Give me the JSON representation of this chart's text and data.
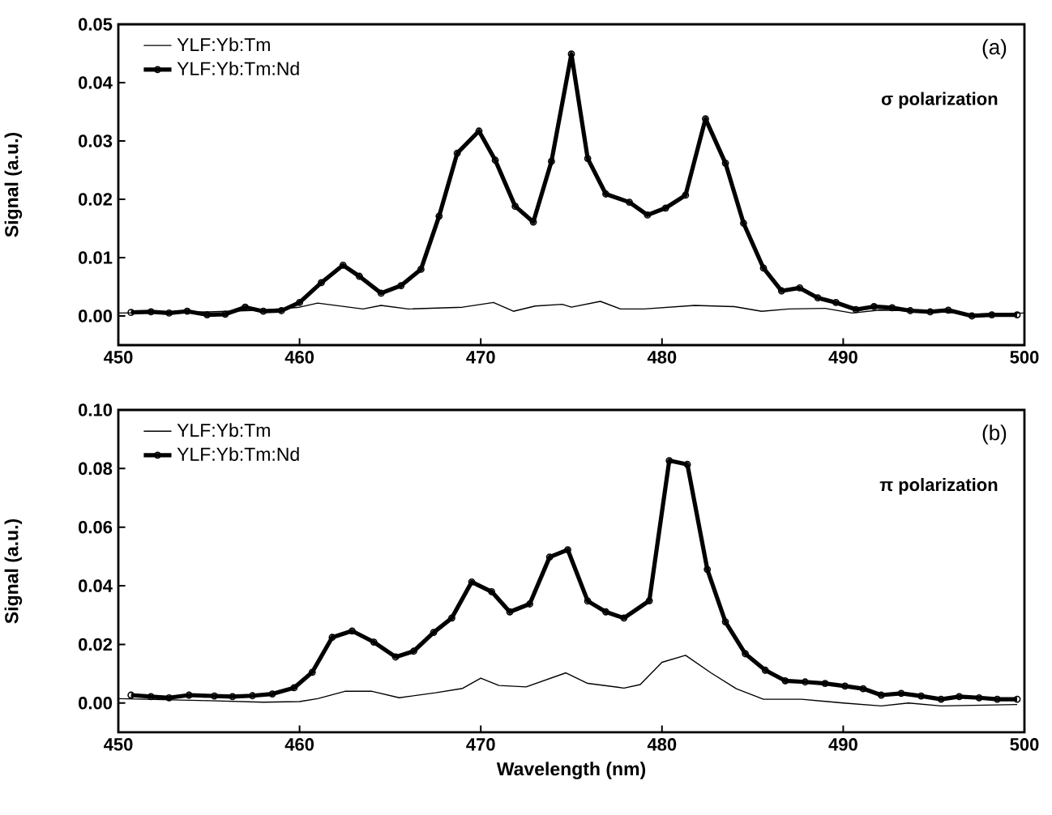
{
  "chart_data": [
    {
      "type": "line",
      "ylabel": "Signal (a.u.)",
      "annotations": [
        "(a)",
        "σ polarization"
      ],
      "legend": "top left",
      "xlim": [
        450,
        500
      ],
      "ylim": [
        -0.005,
        0.05
      ],
      "xticks": [
        450,
        460,
        470,
        480,
        490,
        500
      ],
      "yticks": [
        {
          "value": 0,
          "label": "0.00"
        },
        {
          "value": 0.01,
          "label": "0.01"
        },
        {
          "value": 0.02,
          "label": "0.02"
        },
        {
          "value": 0.03,
          "label": "0.03"
        },
        {
          "value": 0.04,
          "label": "0.04"
        },
        {
          "value": 0.05,
          "label": "0.05"
        }
      ],
      "series": [
        {
          "name": "YLF:Yb:Tm",
          "color": "#000000",
          "x": [
            450,
            455,
            458,
            460,
            461,
            463.5,
            464.5,
            466,
            469,
            470.7,
            471.8,
            473,
            474.5,
            475,
            476.6,
            477.7,
            479,
            481.8,
            484,
            485.5,
            487,
            489,
            490.5,
            492,
            495,
            497,
            500
          ],
          "values": [
            0.0005,
            0.0007,
            0.001,
            0.0015,
            0.0022,
            0.0012,
            0.0018,
            0.0012,
            0.0015,
            0.0023,
            0.0008,
            0.0017,
            0.002,
            0.0015,
            0.0025,
            0.0012,
            0.0012,
            0.0018,
            0.0016,
            0.0008,
            0.0012,
            0.0013,
            0.0005,
            0.001,
            0.0008,
            0.0003,
            0.0005
          ]
        },
        {
          "name": "YLF:Yb:Tm:Nd",
          "color": "#000000",
          "marker": "circle",
          "x": [
            450.7,
            451.8,
            452.8,
            453.8,
            454.9,
            455.9,
            457.0,
            458.0,
            459.0,
            460.0,
            461.2,
            462.4,
            463.3,
            464.5,
            465.6,
            466.7,
            467.7,
            468.7,
            469.9,
            470.8,
            471.9,
            472.9,
            473.9,
            475.0,
            475.9,
            476.9,
            478.2,
            479.2,
            480.2,
            481.3,
            482.4,
            483.5,
            484.5,
            485.6,
            486.6,
            487.6,
            488.6,
            489.6,
            490.7,
            491.7,
            492.7,
            493.7,
            494.8,
            495.8,
            497.1,
            498.2,
            499.6
          ],
          "values": [
            0.0006,
            0.0007,
            0.0005,
            0.0008,
            0.0002,
            0.0003,
            0.0015,
            0.0008,
            0.0009,
            0.0023,
            0.0057,
            0.0087,
            0.0068,
            0.0039,
            0.0052,
            0.008,
            0.0171,
            0.0279,
            0.0317,
            0.0267,
            0.0188,
            0.0161,
            0.0265,
            0.0449,
            0.027,
            0.0209,
            0.0195,
            0.0173,
            0.0185,
            0.0207,
            0.0338,
            0.0262,
            0.0159,
            0.0082,
            0.0043,
            0.0048,
            0.0031,
            0.0023,
            0.0011,
            0.0016,
            0.0014,
            0.0009,
            0.0007,
            0.001,
            0.0,
            0.0002,
            0.0002
          ]
        }
      ]
    },
    {
      "type": "line",
      "xlabel": "Wavelength (nm)",
      "ylabel": "Signal (a.u.)",
      "annotations": [
        "(b)",
        "π polarization"
      ],
      "legend": "top left",
      "xlim": [
        450,
        500
      ],
      "ylim": [
        -0.01,
        0.1
      ],
      "xticks": [
        450,
        460,
        470,
        480,
        490,
        500
      ],
      "yticks": [
        {
          "value": 0,
          "label": "0.00"
        },
        {
          "value": 0.02,
          "label": "0.02"
        },
        {
          "value": 0.04,
          "label": "0.04"
        },
        {
          "value": 0.06,
          "label": "0.06"
        },
        {
          "value": 0.08,
          "label": "0.08"
        },
        {
          "value": 0.1,
          "label": "0.10"
        }
      ],
      "series": [
        {
          "name": "YLF:Yb:Tm",
          "color": "#000000",
          "x": [
            450,
            455,
            458,
            460,
            461,
            462.5,
            464,
            465.5,
            467.5,
            469,
            470,
            471,
            472.5,
            474.7,
            475.9,
            477.9,
            478.8,
            480,
            481.3,
            482.7,
            484.1,
            485.6,
            487.7,
            490,
            492.1,
            493.6,
            495.4,
            499.6
          ],
          "values": [
            0.0015,
            0.0008,
            0.0003,
            0.0005,
            0.0015,
            0.004,
            0.004,
            0.0018,
            0.0035,
            0.005,
            0.0085,
            0.006,
            0.0055,
            0.0103,
            0.0067,
            0.0051,
            0.0063,
            0.0139,
            0.0163,
            0.0103,
            0.0049,
            0.0013,
            0.0013,
            0.0,
            -0.001,
            0.0,
            -0.001,
            -0.0005
          ]
        },
        {
          "name": "YLF:Yb:Tm:Nd",
          "color": "#000000",
          "marker": "circle",
          "x": [
            450.7,
            451.8,
            452.8,
            453.9,
            455.3,
            456.3,
            457.4,
            458.5,
            459.7,
            460.7,
            461.8,
            462.9,
            464.1,
            465.3,
            466.3,
            467.4,
            468.4,
            469.5,
            470.6,
            471.6,
            472.7,
            473.8,
            474.8,
            475.9,
            476.9,
            477.9,
            479.3,
            480.4,
            481.4,
            482.5,
            483.5,
            484.6,
            485.7,
            486.8,
            487.9,
            489.0,
            490.1,
            491.1,
            492.1,
            493.2,
            494.3,
            495.4,
            496.4,
            497.5,
            498.5,
            499.6
          ],
          "values": [
            0.0027,
            0.0022,
            0.0018,
            0.0027,
            0.0024,
            0.0022,
            0.0025,
            0.0031,
            0.0052,
            0.0105,
            0.0224,
            0.0246,
            0.0208,
            0.0157,
            0.0177,
            0.0241,
            0.029,
            0.0413,
            0.038,
            0.0311,
            0.0338,
            0.0498,
            0.0523,
            0.0348,
            0.0311,
            0.029,
            0.0349,
            0.0827,
            0.0814,
            0.0456,
            0.0277,
            0.0168,
            0.0112,
            0.0076,
            0.0072,
            0.0067,
            0.0058,
            0.0049,
            0.0027,
            0.0033,
            0.0024,
            0.0013,
            0.0022,
            0.0018,
            0.0013,
            0.0013
          ]
        }
      ]
    }
  ]
}
